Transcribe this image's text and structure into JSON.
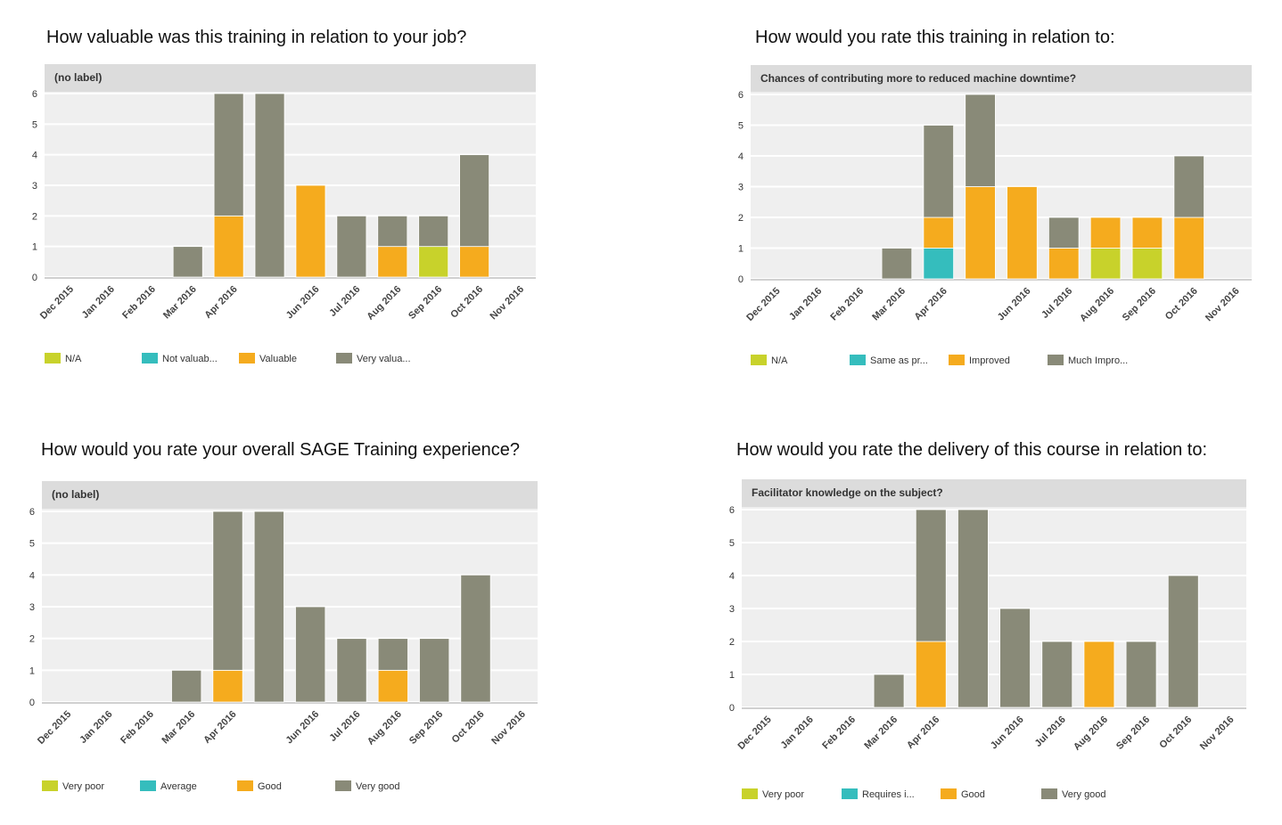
{
  "colors": {
    "na_or_very_poor": "#c8d22b",
    "teal": "#35bdbd",
    "orange": "#f5ab1e",
    "gray": "#898a78",
    "plot_bg": "#efefef",
    "header_bg": "#dcdcdc"
  },
  "chart_data": [
    {
      "type": "bar",
      "stacked": true,
      "title": "How valuable was this training in relation to your job?",
      "subtitle": "(no label)",
      "categories": [
        "Dec 2015",
        "Jan 2016",
        "Feb 2016",
        "Mar 2016",
        "Apr 2016",
        "",
        "Jun 2016",
        "Jul 2016",
        "Aug 2016",
        "Sep 2016",
        "Oct 2016",
        "Nov 2016"
      ],
      "ylim": [
        0,
        6
      ],
      "yticks": [
        "0",
        "1",
        "2",
        "3",
        "4",
        "5",
        "6"
      ],
      "grid": true,
      "legend_position": "bottom",
      "series": [
        {
          "name": "N/A",
          "color": "#c8d22b",
          "values": [
            0,
            0,
            0,
            0,
            0,
            0,
            0,
            0,
            0,
            1,
            0,
            0
          ]
        },
        {
          "name": "Not valuab...",
          "color": "#35bdbd",
          "values": [
            0,
            0,
            0,
            0,
            0,
            0,
            0,
            0,
            0,
            0,
            0,
            0
          ]
        },
        {
          "name": "Valuable",
          "color": "#f5ab1e",
          "values": [
            0,
            0,
            0,
            0,
            2,
            0,
            3,
            0,
            1,
            0,
            1,
            0
          ]
        },
        {
          "name": "Very valua...",
          "color": "#898a78",
          "values": [
            0,
            0,
            0,
            1,
            4,
            6,
            0,
            2,
            1,
            1,
            3,
            0
          ]
        }
      ]
    },
    {
      "type": "bar",
      "stacked": true,
      "title": "How would you rate this training in relation to:",
      "subtitle": "Chances of contributing more to reduced machine downtime?",
      "categories": [
        "Dec 2015",
        "Jan 2016",
        "Feb 2016",
        "Mar 2016",
        "Apr 2016",
        "",
        "Jun 2016",
        "Jul 2016",
        "Aug 2016",
        "Sep 2016",
        "Oct 2016",
        "Nov 2016"
      ],
      "ylim": [
        0,
        6
      ],
      "yticks": [
        "0",
        "1",
        "2",
        "3",
        "4",
        "5",
        "6"
      ],
      "grid": true,
      "legend_position": "bottom",
      "series": [
        {
          "name": "N/A",
          "color": "#c8d22b",
          "values": [
            0,
            0,
            0,
            0,
            0,
            0,
            0,
            0,
            1,
            1,
            0,
            0
          ]
        },
        {
          "name": "Same as pr...",
          "color": "#35bdbd",
          "values": [
            0,
            0,
            0,
            0,
            1,
            0,
            0,
            0,
            0,
            0,
            0,
            0
          ]
        },
        {
          "name": "Improved",
          "color": "#f5ab1e",
          "values": [
            0,
            0,
            0,
            0,
            1,
            3,
            3,
            1,
            1,
            1,
            2,
            0
          ]
        },
        {
          "name": "Much Impro...",
          "color": "#898a78",
          "values": [
            0,
            0,
            0,
            1,
            3,
            3,
            0,
            1,
            0,
            0,
            2,
            0
          ]
        }
      ]
    },
    {
      "type": "bar",
      "stacked": true,
      "title": "How would you rate your overall SAGE Training experience?",
      "subtitle": "(no label)",
      "categories": [
        "Dec 2015",
        "Jan 2016",
        "Feb 2016",
        "Mar 2016",
        "Apr 2016",
        "",
        "Jun 2016",
        "Jul 2016",
        "Aug 2016",
        "Sep 2016",
        "Oct 2016",
        "Nov 2016"
      ],
      "ylim": [
        0,
        6
      ],
      "yticks": [
        "0",
        "1",
        "2",
        "3",
        "4",
        "5",
        "6"
      ],
      "grid": true,
      "legend_position": "bottom",
      "series": [
        {
          "name": "Very poor",
          "color": "#c8d22b",
          "values": [
            0,
            0,
            0,
            0,
            0,
            0,
            0,
            0,
            0,
            0,
            0,
            0
          ]
        },
        {
          "name": "Average",
          "color": "#35bdbd",
          "values": [
            0,
            0,
            0,
            0,
            0,
            0,
            0,
            0,
            0,
            0,
            0,
            0
          ]
        },
        {
          "name": "Good",
          "color": "#f5ab1e",
          "values": [
            0,
            0,
            0,
            0,
            1,
            0,
            0,
            0,
            1,
            0,
            0,
            0
          ]
        },
        {
          "name": "Very good",
          "color": "#898a78",
          "values": [
            0,
            0,
            0,
            1,
            5,
            6,
            3,
            2,
            1,
            2,
            4,
            0
          ]
        }
      ]
    },
    {
      "type": "bar",
      "stacked": true,
      "title": "How would you rate the delivery of this course in relation to:",
      "subtitle": "Facilitator knowledge on the subject?",
      "categories": [
        "Dec 2015",
        "Jan 2016",
        "Feb 2016",
        "Mar 2016",
        "Apr 2016",
        "",
        "Jun 2016",
        "Jul 2016",
        "Aug 2016",
        "Sep 2016",
        "Oct 2016",
        "Nov 2016"
      ],
      "ylim": [
        0,
        6
      ],
      "yticks": [
        "0",
        "1",
        "2",
        "3",
        "4",
        "5",
        "6"
      ],
      "grid": true,
      "legend_position": "bottom",
      "series": [
        {
          "name": "Very poor",
          "color": "#c8d22b",
          "values": [
            0,
            0,
            0,
            0,
            0,
            0,
            0,
            0,
            0,
            0,
            0,
            0
          ]
        },
        {
          "name": "Requires i...",
          "color": "#35bdbd",
          "values": [
            0,
            0,
            0,
            0,
            0,
            0,
            0,
            0,
            0,
            0,
            0,
            0
          ]
        },
        {
          "name": "Good",
          "color": "#f5ab1e",
          "values": [
            0,
            0,
            0,
            0,
            2,
            0,
            0,
            0,
            2,
            0,
            0,
            0
          ]
        },
        {
          "name": "Very good",
          "color": "#898a78",
          "values": [
            0,
            0,
            0,
            1,
            4,
            6,
            3,
            2,
            0,
            2,
            4,
            0
          ]
        }
      ]
    }
  ]
}
